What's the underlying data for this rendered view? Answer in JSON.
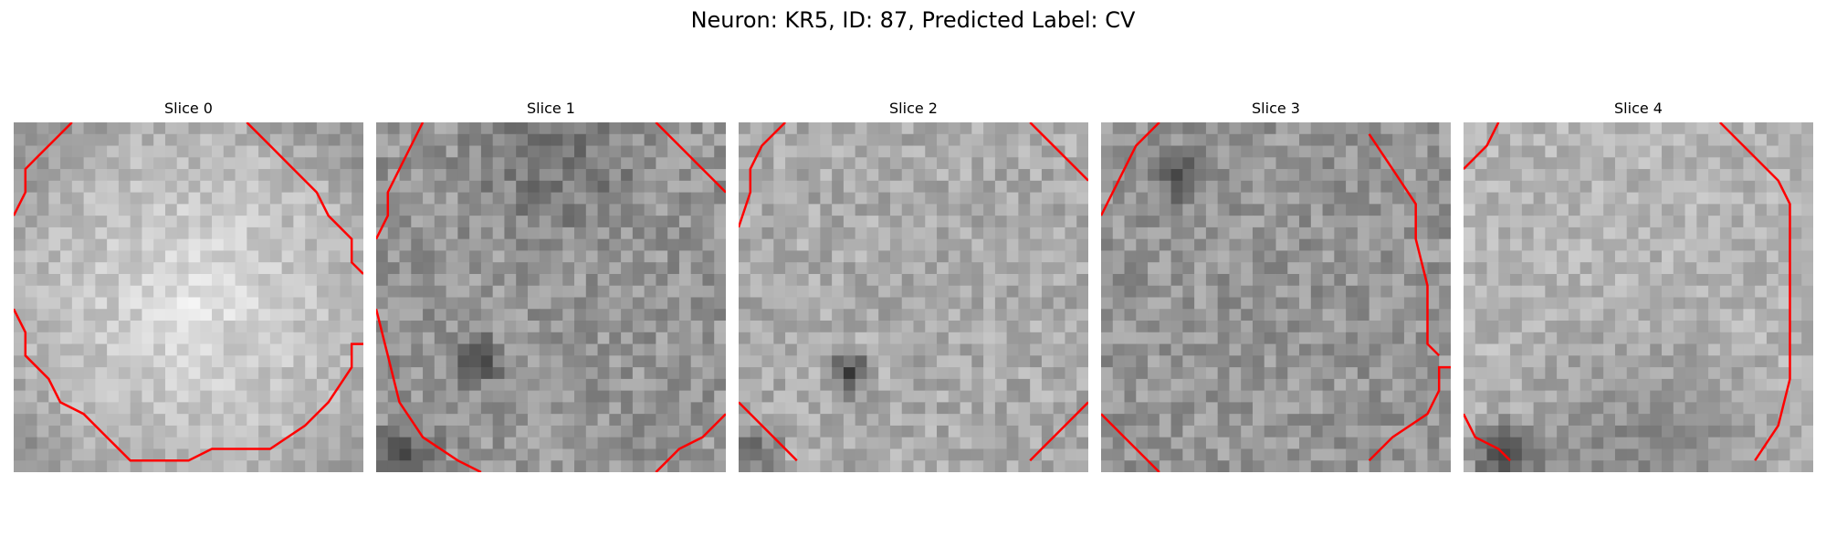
{
  "figure": {
    "title": "Neuron: KR5, ID: 87, Predicted Label: CV"
  },
  "colors": {
    "contour": "#ff0000",
    "background": "#ffffff"
  },
  "panels": [
    {
      "title": "Slice 0"
    },
    {
      "title": "Slice 1"
    },
    {
      "title": "Slice 2"
    },
    {
      "title": "Slice 3"
    },
    {
      "title": "Slice 4"
    }
  ]
}
